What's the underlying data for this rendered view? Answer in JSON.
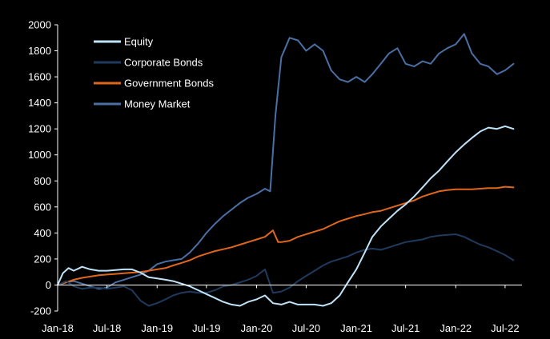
{
  "chart_data": {
    "type": "line",
    "title": "",
    "xlabel": "",
    "ylabel": "",
    "ylim": [
      -200,
      2000
    ],
    "yticks": [
      -200,
      0,
      200,
      400,
      600,
      800,
      1000,
      1200,
      1400,
      1600,
      1800,
      2000
    ],
    "ytick_labels": [
      "-200",
      "0",
      "200",
      "400",
      "600",
      "800",
      "1000",
      "1200",
      "1400",
      "1600",
      "1800",
      "2000"
    ],
    "xlim": [
      "2018-01-01",
      "2022-09-01"
    ],
    "xticks": [
      "2018-01-01",
      "2018-07-01",
      "2019-01-01",
      "2019-07-01",
      "2020-01-01",
      "2020-07-01",
      "2021-01-01",
      "2021-07-01",
      "2022-01-01",
      "2022-07-01"
    ],
    "xtick_labels": [
      "Jan-18",
      "Jul-18",
      "Jan-19",
      "Jul-19",
      "Jan-20",
      "Jul-20",
      "Jan-21",
      "Jul-21",
      "Jan-22",
      "Jul-22"
    ],
    "grid": false,
    "legend_position": "top-left",
    "background": "#000000",
    "text_color": "#ffffff",
    "series": [
      {
        "name": "Equity",
        "color": "#bfe3f8",
        "points": [
          [
            "2018-01-01",
            0
          ],
          [
            "2018-01-20",
            90
          ],
          [
            "2018-02-10",
            130
          ],
          [
            "2018-03-01",
            110
          ],
          [
            "2018-04-01",
            140
          ],
          [
            "2018-05-01",
            120
          ],
          [
            "2018-06-01",
            110
          ],
          [
            "2018-07-01",
            110
          ],
          [
            "2018-08-01",
            115
          ],
          [
            "2018-09-01",
            120
          ],
          [
            "2018-10-01",
            120
          ],
          [
            "2018-11-01",
            95
          ],
          [
            "2018-12-01",
            60
          ],
          [
            "2019-01-01",
            50
          ],
          [
            "2019-02-01",
            40
          ],
          [
            "2019-03-01",
            30
          ],
          [
            "2019-04-01",
            10
          ],
          [
            "2019-05-01",
            -10
          ],
          [
            "2019-06-01",
            -40
          ],
          [
            "2019-07-01",
            -70
          ],
          [
            "2019-08-01",
            -100
          ],
          [
            "2019-09-01",
            -130
          ],
          [
            "2019-10-01",
            -150
          ],
          [
            "2019-11-01",
            -160
          ],
          [
            "2019-12-01",
            -130
          ],
          [
            "2020-01-01",
            -110
          ],
          [
            "2020-02-01",
            -80
          ],
          [
            "2020-03-01",
            -140
          ],
          [
            "2020-04-01",
            -150
          ],
          [
            "2020-05-01",
            -130
          ],
          [
            "2020-06-01",
            -150
          ],
          [
            "2020-07-01",
            -150
          ],
          [
            "2020-08-01",
            -150
          ],
          [
            "2020-09-01",
            -160
          ],
          [
            "2020-10-01",
            -140
          ],
          [
            "2020-11-01",
            -80
          ],
          [
            "2020-12-01",
            20
          ],
          [
            "2021-01-01",
            120
          ],
          [
            "2021-02-01",
            250
          ],
          [
            "2021-03-01",
            370
          ],
          [
            "2021-04-01",
            450
          ],
          [
            "2021-05-01",
            510
          ],
          [
            "2021-06-01",
            570
          ],
          [
            "2021-07-01",
            620
          ],
          [
            "2021-08-01",
            680
          ],
          [
            "2021-09-01",
            750
          ],
          [
            "2021-10-01",
            820
          ],
          [
            "2021-11-01",
            880
          ],
          [
            "2021-12-01",
            950
          ],
          [
            "2022-01-01",
            1020
          ],
          [
            "2022-02-01",
            1080
          ],
          [
            "2022-03-01",
            1130
          ],
          [
            "2022-04-01",
            1180
          ],
          [
            "2022-05-01",
            1210
          ],
          [
            "2022-06-01",
            1200
          ],
          [
            "2022-07-01",
            1220
          ],
          [
            "2022-08-01",
            1200
          ]
        ]
      },
      {
        "name": "Corporate Bonds",
        "color": "#1f3a5c",
        "points": [
          [
            "2018-01-01",
            0
          ],
          [
            "2018-02-01",
            30
          ],
          [
            "2018-03-01",
            -10
          ],
          [
            "2018-04-01",
            -30
          ],
          [
            "2018-05-01",
            -20
          ],
          [
            "2018-06-01",
            -20
          ],
          [
            "2018-07-01",
            -30
          ],
          [
            "2018-08-01",
            -20
          ],
          [
            "2018-09-01",
            -10
          ],
          [
            "2018-10-01",
            -40
          ],
          [
            "2018-11-01",
            -120
          ],
          [
            "2018-12-01",
            -160
          ],
          [
            "2019-01-01",
            -140
          ],
          [
            "2019-02-01",
            -110
          ],
          [
            "2019-03-01",
            -80
          ],
          [
            "2019-04-01",
            -60
          ],
          [
            "2019-05-01",
            -50
          ],
          [
            "2019-06-01",
            -60
          ],
          [
            "2019-07-01",
            -60
          ],
          [
            "2019-08-01",
            -40
          ],
          [
            "2019-09-01",
            -10
          ],
          [
            "2019-10-01",
            0
          ],
          [
            "2019-11-01",
            20
          ],
          [
            "2019-12-01",
            40
          ],
          [
            "2020-01-01",
            70
          ],
          [
            "2020-02-01",
            120
          ],
          [
            "2020-03-01",
            -60
          ],
          [
            "2020-04-01",
            -50
          ],
          [
            "2020-05-01",
            -20
          ],
          [
            "2020-06-01",
            30
          ],
          [
            "2020-07-01",
            70
          ],
          [
            "2020-08-01",
            110
          ],
          [
            "2020-09-01",
            150
          ],
          [
            "2020-10-01",
            180
          ],
          [
            "2020-11-01",
            200
          ],
          [
            "2020-12-01",
            220
          ],
          [
            "2021-01-01",
            250
          ],
          [
            "2021-02-01",
            270
          ],
          [
            "2021-03-01",
            280
          ],
          [
            "2021-04-01",
            270
          ],
          [
            "2021-05-01",
            290
          ],
          [
            "2021-06-01",
            310
          ],
          [
            "2021-07-01",
            330
          ],
          [
            "2021-08-01",
            340
          ],
          [
            "2021-09-01",
            350
          ],
          [
            "2021-10-01",
            370
          ],
          [
            "2021-11-01",
            380
          ],
          [
            "2021-12-01",
            385
          ],
          [
            "2022-01-01",
            390
          ],
          [
            "2022-02-01",
            370
          ],
          [
            "2022-03-01",
            340
          ],
          [
            "2022-04-01",
            310
          ],
          [
            "2022-05-01",
            290
          ],
          [
            "2022-06-01",
            260
          ],
          [
            "2022-07-01",
            230
          ],
          [
            "2022-08-01",
            190
          ]
        ]
      },
      {
        "name": "Government Bonds",
        "color": "#e0661c",
        "points": [
          [
            "2018-01-01",
            0
          ],
          [
            "2018-02-01",
            20
          ],
          [
            "2018-03-01",
            40
          ],
          [
            "2018-04-01",
            55
          ],
          [
            "2018-05-01",
            65
          ],
          [
            "2018-06-01",
            75
          ],
          [
            "2018-07-01",
            80
          ],
          [
            "2018-08-01",
            85
          ],
          [
            "2018-09-01",
            90
          ],
          [
            "2018-10-01",
            95
          ],
          [
            "2018-11-01",
            100
          ],
          [
            "2018-12-01",
            110
          ],
          [
            "2019-01-01",
            120
          ],
          [
            "2019-02-01",
            130
          ],
          [
            "2019-03-01",
            150
          ],
          [
            "2019-04-01",
            170
          ],
          [
            "2019-05-01",
            190
          ],
          [
            "2019-06-01",
            220
          ],
          [
            "2019-07-01",
            240
          ],
          [
            "2019-08-01",
            260
          ],
          [
            "2019-09-01",
            275
          ],
          [
            "2019-10-01",
            290
          ],
          [
            "2019-11-01",
            310
          ],
          [
            "2019-12-01",
            330
          ],
          [
            "2020-01-01",
            350
          ],
          [
            "2020-02-01",
            370
          ],
          [
            "2020-03-01",
            420
          ],
          [
            "2020-03-20",
            330
          ],
          [
            "2020-04-01",
            330
          ],
          [
            "2020-05-01",
            340
          ],
          [
            "2020-06-01",
            370
          ],
          [
            "2020-07-01",
            390
          ],
          [
            "2020-08-01",
            410
          ],
          [
            "2020-09-01",
            430
          ],
          [
            "2020-10-01",
            460
          ],
          [
            "2020-11-01",
            490
          ],
          [
            "2020-12-01",
            510
          ],
          [
            "2021-01-01",
            530
          ],
          [
            "2021-02-01",
            545
          ],
          [
            "2021-03-01",
            560
          ],
          [
            "2021-04-01",
            570
          ],
          [
            "2021-05-01",
            590
          ],
          [
            "2021-06-01",
            610
          ],
          [
            "2021-07-01",
            630
          ],
          [
            "2021-08-01",
            650
          ],
          [
            "2021-09-01",
            680
          ],
          [
            "2021-10-01",
            700
          ],
          [
            "2021-11-01",
            720
          ],
          [
            "2021-12-01",
            730
          ],
          [
            "2022-01-01",
            735
          ],
          [
            "2022-02-01",
            735
          ],
          [
            "2022-03-01",
            735
          ],
          [
            "2022-04-01",
            740
          ],
          [
            "2022-05-01",
            745
          ],
          [
            "2022-06-01",
            745
          ],
          [
            "2022-07-01",
            755
          ],
          [
            "2022-08-01",
            750
          ]
        ]
      },
      {
        "name": "Money Market",
        "color": "#4a6fa5",
        "points": [
          [
            "2018-01-01",
            0
          ],
          [
            "2018-02-01",
            20
          ],
          [
            "2018-03-01",
            30
          ],
          [
            "2018-04-01",
            10
          ],
          [
            "2018-05-01",
            -10
          ],
          [
            "2018-06-01",
            -30
          ],
          [
            "2018-07-01",
            -20
          ],
          [
            "2018-08-01",
            20
          ],
          [
            "2018-09-01",
            40
          ],
          [
            "2018-10-01",
            60
          ],
          [
            "2018-11-01",
            80
          ],
          [
            "2018-12-01",
            110
          ],
          [
            "2019-01-01",
            160
          ],
          [
            "2019-02-01",
            180
          ],
          [
            "2019-03-01",
            190
          ],
          [
            "2019-04-01",
            200
          ],
          [
            "2019-05-01",
            250
          ],
          [
            "2019-06-01",
            320
          ],
          [
            "2019-07-01",
            400
          ],
          [
            "2019-08-01",
            470
          ],
          [
            "2019-09-01",
            530
          ],
          [
            "2019-10-01",
            580
          ],
          [
            "2019-11-01",
            630
          ],
          [
            "2019-12-01",
            670
          ],
          [
            "2020-01-01",
            700
          ],
          [
            "2020-02-01",
            740
          ],
          [
            "2020-02-20",
            720
          ],
          [
            "2020-03-10",
            1300
          ],
          [
            "2020-04-01",
            1750
          ],
          [
            "2020-05-01",
            1900
          ],
          [
            "2020-06-01",
            1880
          ],
          [
            "2020-07-01",
            1800
          ],
          [
            "2020-08-01",
            1850
          ],
          [
            "2020-09-01",
            1800
          ],
          [
            "2020-10-01",
            1650
          ],
          [
            "2020-11-01",
            1580
          ],
          [
            "2020-12-01",
            1560
          ],
          [
            "2021-01-01",
            1600
          ],
          [
            "2021-02-01",
            1560
          ],
          [
            "2021-03-01",
            1620
          ],
          [
            "2021-04-01",
            1700
          ],
          [
            "2021-05-01",
            1780
          ],
          [
            "2021-06-01",
            1820
          ],
          [
            "2021-07-01",
            1700
          ],
          [
            "2021-08-01",
            1680
          ],
          [
            "2021-09-01",
            1720
          ],
          [
            "2021-10-01",
            1700
          ],
          [
            "2021-11-01",
            1780
          ],
          [
            "2021-12-01",
            1820
          ],
          [
            "2022-01-01",
            1850
          ],
          [
            "2022-02-01",
            1930
          ],
          [
            "2022-03-01",
            1780
          ],
          [
            "2022-04-01",
            1700
          ],
          [
            "2022-05-01",
            1680
          ],
          [
            "2022-06-01",
            1620
          ],
          [
            "2022-07-01",
            1650
          ],
          [
            "2022-08-01",
            1700
          ]
        ]
      }
    ]
  }
}
